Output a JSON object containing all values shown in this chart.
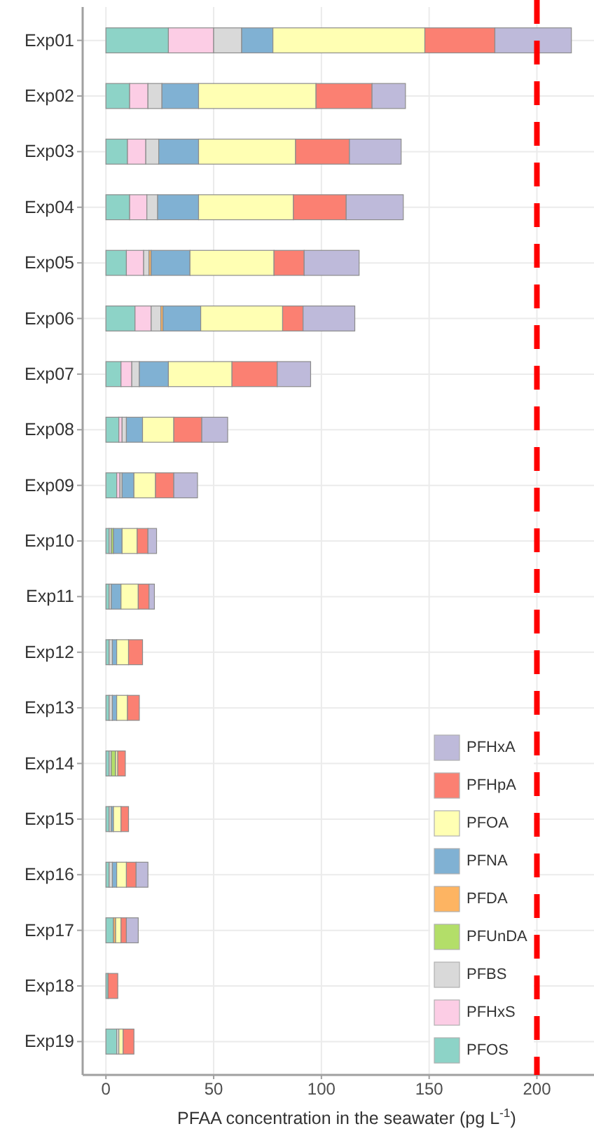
{
  "chart_data": {
    "type": "bar",
    "orientation": "horizontal",
    "stacked": true,
    "xlabel": "PFAA concentration in the seawater (pg L$^{-1}$)",
    "categories": [
      "Exp01",
      "Exp02",
      "Exp03",
      "Exp04",
      "Exp05",
      "Exp06",
      "Exp07",
      "Exp08",
      "Exp09",
      "Exp10",
      "Exp11",
      "Exp12",
      "Exp13",
      "Exp14",
      "Exp15",
      "Exp16",
      "Exp17",
      "Exp18",
      "Exp19"
    ],
    "series": [
      {
        "name": "PFOS",
        "color": "#8dd3c7",
        "values": [
          29,
          11,
          10,
          11,
          9.5,
          13.5,
          7,
          6,
          5,
          1.5,
          1.5,
          1.5,
          1.5,
          1.5,
          1.5,
          1.5,
          3.5,
          1,
          5
        ]
      },
      {
        "name": "PFHxS",
        "color": "#fccde5",
        "values": [
          21,
          8.5,
          8.5,
          8,
          8,
          7.5,
          5,
          1.5,
          1.5,
          null,
          null,
          null,
          null,
          null,
          null,
          null,
          null,
          null,
          null
        ]
      },
      {
        "name": "PFBS",
        "color": "#d9d9d9",
        "values": [
          13,
          6.5,
          6,
          5,
          2.5,
          4.5,
          3.5,
          2,
          1,
          1,
          1,
          1.5,
          1.5,
          1,
          1,
          1.5,
          null,
          null,
          1
        ]
      },
      {
        "name": "PFUnDA",
        "color": "#b3de69",
        "values": [
          null,
          null,
          null,
          null,
          null,
          null,
          null,
          null,
          null,
          1,
          null,
          null,
          null,
          2,
          null,
          null,
          null,
          null,
          null
        ]
      },
      {
        "name": "PFDA",
        "color": "#fdb462",
        "values": [
          null,
          null,
          null,
          null,
          1,
          1,
          null,
          null,
          null,
          null,
          null,
          null,
          null,
          null,
          null,
          null,
          1,
          null,
          null
        ]
      },
      {
        "name": "PFNA",
        "color": "#80b1d3",
        "values": [
          14.5,
          17,
          18.5,
          19,
          18,
          17.5,
          13.5,
          7.5,
          5.5,
          4,
          4.5,
          2,
          2,
          null,
          1,
          2,
          null,
          null,
          null
        ]
      },
      {
        "name": "PFOA",
        "color": "#ffffb3",
        "values": [
          70.5,
          54.5,
          45,
          44,
          39,
          38,
          29.5,
          14.5,
          10,
          7,
          8,
          5.5,
          5,
          1,
          3.5,
          4.5,
          2.5,
          null,
          2
        ]
      },
      {
        "name": "PFHpA",
        "color": "#fb8072",
        "values": [
          32.5,
          26,
          25,
          24.5,
          14,
          9.5,
          21,
          13,
          8.5,
          5,
          5,
          6.5,
          5.5,
          3.5,
          3.5,
          4.5,
          2.5,
          4.5,
          5
        ]
      },
      {
        "name": "PFHxA",
        "color": "#bebada",
        "values": [
          35.5,
          15.5,
          24,
          26.5,
          25.5,
          24,
          15.5,
          12,
          11,
          4,
          2.5,
          null,
          null,
          null,
          null,
          5.5,
          5.5,
          null,
          null
        ]
      }
    ],
    "xlim": [
      -10.8,
      226.5
    ],
    "xticks": [
      0,
      50,
      100,
      150,
      200
    ],
    "ref_lines": [
      {
        "axis": "x",
        "value": 200,
        "color": "#ff0000",
        "line_style": "dashed"
      }
    ],
    "grid": true,
    "legend": "bottom right"
  }
}
